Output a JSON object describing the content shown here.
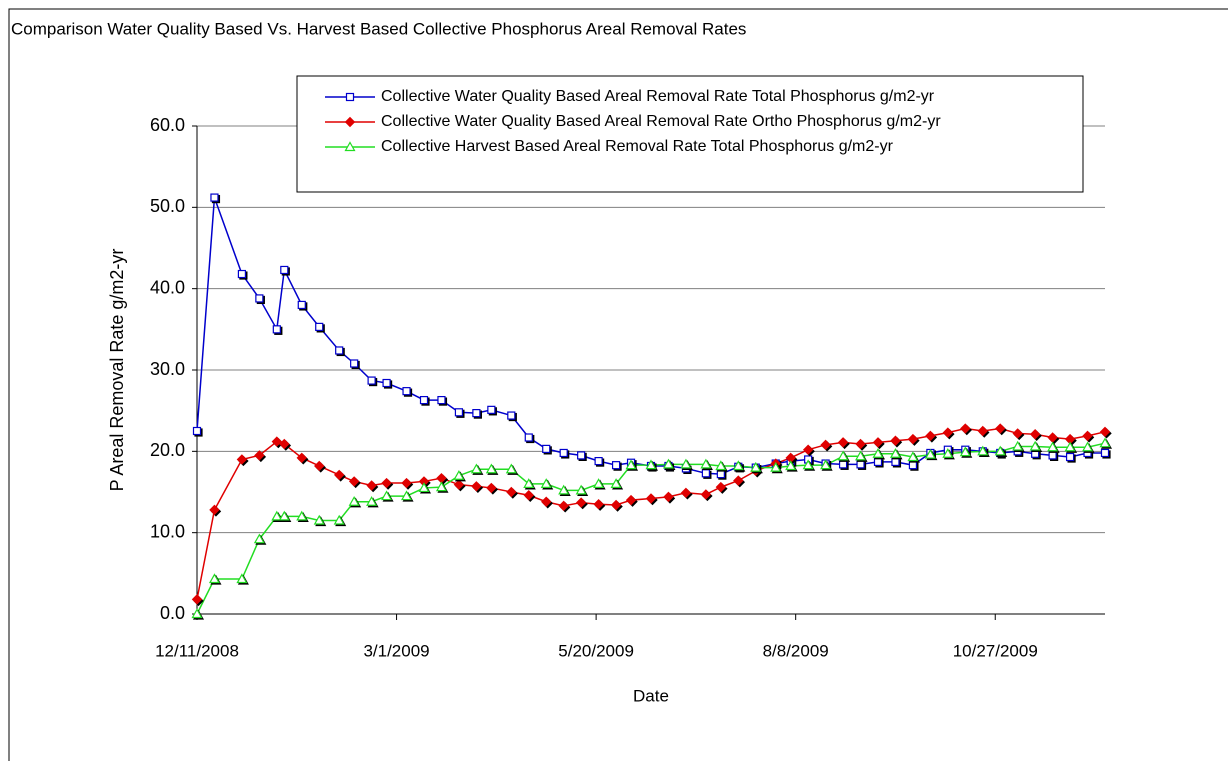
{
  "chart_data": {
    "type": "line",
    "title": "Comparison Water Quality Based Vs. Harvest Based Collective Phosphorus Areal Removal Rates",
    "x_label": "Date",
    "y_label": "P Areal Removal Rate   g/m2-yr",
    "x": [
      "2008-12-11",
      "2008-12-18",
      "2008-12-29",
      "2009-01-05",
      "2009-01-12",
      "2009-01-15",
      "2009-01-22",
      "2009-01-29",
      "2009-02-06",
      "2009-02-12",
      "2009-02-19",
      "2009-02-25",
      "2009-03-05",
      "2009-03-12",
      "2009-03-19",
      "2009-03-26",
      "2009-04-02",
      "2009-04-08",
      "2009-04-16",
      "2009-04-23",
      "2009-04-30",
      "2009-05-07",
      "2009-05-14",
      "2009-05-21",
      "2009-05-28",
      "2009-06-03",
      "2009-06-11",
      "2009-06-18",
      "2009-06-25",
      "2009-07-03",
      "2009-07-09",
      "2009-07-16",
      "2009-07-23",
      "2009-07-31",
      "2009-08-06",
      "2009-08-13",
      "2009-08-20",
      "2009-08-27",
      "2009-09-03",
      "2009-09-10",
      "2009-09-17",
      "2009-09-24",
      "2009-10-01",
      "2009-10-08",
      "2009-10-15",
      "2009-10-22",
      "2009-10-29",
      "2009-11-05",
      "2009-11-12",
      "2009-11-19",
      "2009-11-26",
      "2009-12-03",
      "2009-12-10"
    ],
    "series": [
      {
        "name": "Collective Water Quality Based Areal Removal Rate Total Phosphorus g/m2-yr",
        "color": "#0000cc",
        "marker": "square",
        "values": [
          22.5,
          51.2,
          41.8,
          38.8,
          35,
          42.3,
          38,
          35.3,
          32.4,
          30.8,
          28.7,
          28.4,
          27.4,
          26.3,
          26.3,
          24.8,
          24.7,
          25.1,
          24.4,
          21.7,
          20.3,
          19.8,
          19.5,
          18.8,
          18.3,
          18.6,
          18.2,
          18.2,
          17.9,
          17.3,
          17.2,
          18.1,
          18,
          18.5,
          18.8,
          19,
          18.5,
          18.4,
          18.4,
          18.7,
          18.7,
          18.3,
          19.8,
          20.2,
          20.2,
          20,
          19.8,
          20,
          19.7,
          19.5,
          19.3,
          19.8,
          19.8
        ]
      },
      {
        "name": "Collective Water Quality Based Areal Removal Rate Ortho Phosphorus g/m2-yr",
        "color": "#e00000",
        "marker": "diamond",
        "values": [
          1.8,
          12.8,
          19,
          19.5,
          21.2,
          20.9,
          19.2,
          18.2,
          17.1,
          16.3,
          15.8,
          16.1,
          16.1,
          16.3,
          16.7,
          15.9,
          15.7,
          15.5,
          15,
          14.6,
          13.8,
          13.3,
          13.7,
          13.5,
          13.4,
          14,
          14.2,
          14.4,
          14.9,
          14.7,
          15.6,
          16.4,
          17.6,
          18.5,
          19.2,
          20.2,
          20.8,
          21.1,
          20.9,
          21.1,
          21.3,
          21.5,
          21.9,
          22.3,
          22.8,
          22.5,
          22.8,
          22.2,
          22.1,
          21.7,
          21.5,
          21.9,
          22.4
        ]
      },
      {
        "name": "Collective Harvest Based Areal Removal Rate Total Phosphorus g/m2-yr",
        "color": "#22dd22",
        "marker": "triangle",
        "values": [
          0,
          4.3,
          4.3,
          9.2,
          12,
          12,
          12,
          11.5,
          11.5,
          13.8,
          13.8,
          14.5,
          14.5,
          15.5,
          15.6,
          17,
          17.8,
          17.8,
          17.8,
          16,
          16,
          15.2,
          15.2,
          16,
          16,
          18.3,
          18.3,
          18.4,
          18.4,
          18.4,
          18.2,
          18.2,
          18,
          18,
          18.2,
          18.3,
          18.3,
          19.4,
          19.4,
          19.7,
          19.7,
          19.3,
          19.6,
          19.7,
          19.9,
          20,
          20,
          20.6,
          20.6,
          20.5,
          20.5,
          20.5,
          21
        ]
      }
    ],
    "xlim": [
      "2008-12-11",
      "2009-12-10"
    ],
    "xticks": [
      {
        "value": "2008-12-11",
        "label": "12/11/2008"
      },
      {
        "value": "2009-03-01",
        "label": "3/1/2009"
      },
      {
        "value": "2009-05-20",
        "label": "5/20/2009"
      },
      {
        "value": "2009-08-08",
        "label": "8/8/2009"
      },
      {
        "value": "2009-10-27",
        "label": "10/27/2009"
      }
    ],
    "ylim": [
      0,
      60
    ],
    "yticks": [
      {
        "value": 0,
        "label": "0.0"
      },
      {
        "value": 10,
        "label": "10.0"
      },
      {
        "value": 20,
        "label": "20.0"
      },
      {
        "value": 30,
        "label": "30.0"
      },
      {
        "value": 40,
        "label": "40.0"
      },
      {
        "value": 50,
        "label": "50.0"
      },
      {
        "value": 60,
        "label": "60.0"
      }
    ],
    "grid": true,
    "legend": "top"
  }
}
